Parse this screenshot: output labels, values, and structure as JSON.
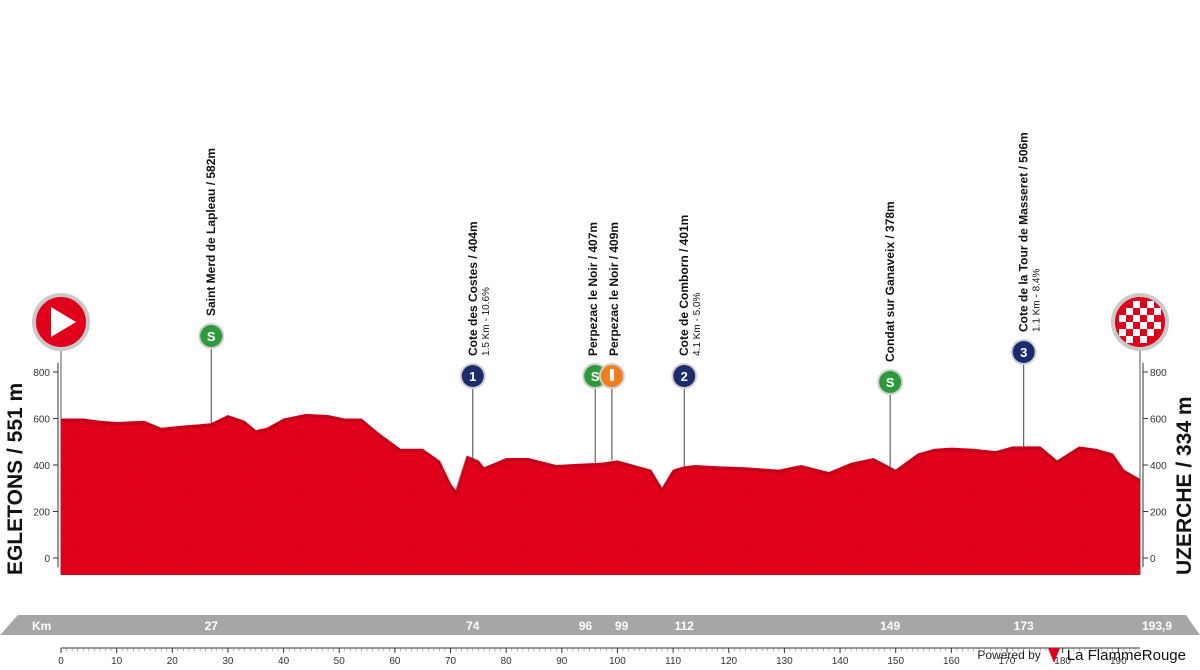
{
  "chart_data": {
    "type": "area",
    "title": "",
    "xlabel": "Km",
    "ylabel": "",
    "xlim": [
      0,
      193.9
    ],
    "ylim": [
      -50,
      850
    ],
    "x_ticks": [
      0,
      10,
      20,
      30,
      40,
      50,
      60,
      70,
      80,
      90,
      100,
      110,
      120,
      130,
      140,
      150,
      160,
      170,
      180,
      190
    ],
    "y_ticks": [
      0,
      200,
      400,
      600,
      800
    ],
    "start": {
      "name": "EGLETONS",
      "elevation": "551 m"
    },
    "finish": {
      "name": "UZERCHE",
      "elevation": "334 m"
    },
    "km_markers": [
      "27",
      "74",
      "96",
      "99",
      "112",
      "149",
      "173",
      "193,9"
    ],
    "km_marker_values": [
      27,
      74,
      96,
      99,
      112,
      149,
      173,
      193.9
    ],
    "x": [
      0,
      4,
      7,
      10,
      15,
      18,
      22,
      25,
      27,
      30,
      33,
      35,
      37,
      40,
      44,
      48,
      51,
      54,
      57,
      61,
      65,
      68,
      70,
      71,
      73,
      75,
      76,
      78,
      80,
      84,
      89,
      93,
      97,
      100,
      103,
      106,
      108,
      110,
      112,
      114,
      118,
      123,
      129,
      133,
      138,
      142,
      146,
      150,
      154,
      157,
      160,
      164,
      168,
      171,
      176,
      179,
      183,
      186,
      189,
      191,
      193.9
    ],
    "y": [
      600,
      600,
      590,
      585,
      590,
      560,
      570,
      575,
      580,
      615,
      590,
      550,
      560,
      600,
      620,
      615,
      600,
      600,
      540,
      470,
      470,
      420,
      320,
      290,
      440,
      420,
      390,
      410,
      430,
      430,
      400,
      405,
      410,
      420,
      400,
      380,
      300,
      380,
      395,
      400,
      395,
      390,
      380,
      400,
      370,
      410,
      430,
      380,
      450,
      470,
      475,
      470,
      460,
      480,
      480,
      420,
      480,
      470,
      450,
      380,
      340
    ],
    "climbs": [
      {
        "km": 27,
        "type": "S",
        "name": "Saint Merd de Lapleau / 582m",
        "detail": ""
      },
      {
        "km": 74,
        "type": "1",
        "name": "Cote des Costes / 404m",
        "detail": "1.5 Km - 10.6%"
      },
      {
        "km": 96,
        "type": "S",
        "name": "Perpezac le Noir / 407m",
        "detail": ""
      },
      {
        "km": 99,
        "type": "F",
        "name": "Perpezac le Noir / 409m",
        "detail": ""
      },
      {
        "km": 112,
        "type": "2",
        "name": "Cote de Comborn / 401m",
        "detail": "4.1 Km - 5.0%"
      },
      {
        "km": 149,
        "type": "S",
        "name": "Condat sur Ganaveix / 378m",
        "detail": ""
      },
      {
        "km": 173,
        "type": "3",
        "name": "Cote de la Tour de Masseret / 506m",
        "detail": "1.1 Km - 8.4%"
      }
    ],
    "colors": {
      "profile": "#e0001b",
      "profile_dark": "#b30015",
      "bar": "#a6a6a6",
      "sprint": "#2e9a3e",
      "climb": "#1c2b6b",
      "feed": "#f07e1e"
    }
  },
  "footer": {
    "powered": "Powered by",
    "brand": "La FlammeRouge"
  }
}
